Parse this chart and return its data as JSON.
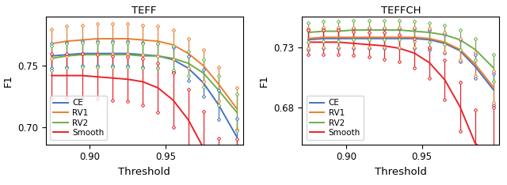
{
  "title_left": "TEFF",
  "title_right": "TEFFCH",
  "xlabel": "Threshold",
  "ylabel": "F1",
  "colors": {
    "CE": "#4472c4",
    "RV1": "#ed7d31",
    "RV2": "#70ad47",
    "Smooth": "#e8252a"
  },
  "thresholds": [
    0.875,
    0.885,
    0.895,
    0.905,
    0.915,
    0.925,
    0.935,
    0.945,
    0.955,
    0.965,
    0.975,
    0.985,
    0.997
  ],
  "teff": {
    "CE": [
      0.758,
      0.759,
      0.76,
      0.76,
      0.76,
      0.76,
      0.759,
      0.758,
      0.755,
      0.748,
      0.736,
      0.718,
      0.692
    ],
    "CE_err": [
      0.01,
      0.01,
      0.01,
      0.01,
      0.01,
      0.01,
      0.01,
      0.01,
      0.01,
      0.01,
      0.011,
      0.012,
      0.015
    ],
    "RV1": [
      0.768,
      0.77,
      0.771,
      0.772,
      0.772,
      0.772,
      0.771,
      0.77,
      0.767,
      0.76,
      0.75,
      0.735,
      0.715
    ],
    "RV1_err": [
      0.012,
      0.012,
      0.012,
      0.012,
      0.012,
      0.012,
      0.012,
      0.012,
      0.012,
      0.012,
      0.013,
      0.014,
      0.017
    ],
    "RV2": [
      0.756,
      0.758,
      0.759,
      0.759,
      0.759,
      0.759,
      0.758,
      0.758,
      0.756,
      0.752,
      0.744,
      0.73,
      0.712
    ],
    "RV2_err": [
      0.01,
      0.01,
      0.01,
      0.01,
      0.01,
      0.01,
      0.01,
      0.01,
      0.01,
      0.01,
      0.011,
      0.012,
      0.015
    ],
    "Smooth": [
      0.742,
      0.742,
      0.742,
      0.741,
      0.74,
      0.739,
      0.737,
      0.732,
      0.722,
      0.706,
      0.683,
      0.653,
      0.638
    ],
    "Smooth_err": [
      0.018,
      0.018,
      0.018,
      0.018,
      0.018,
      0.018,
      0.019,
      0.02,
      0.022,
      0.025,
      0.03,
      0.038,
      0.052
    ]
  },
  "teffch": {
    "CE": [
      0.736,
      0.737,
      0.737,
      0.737,
      0.737,
      0.737,
      0.737,
      0.737,
      0.736,
      0.733,
      0.727,
      0.714,
      0.695
    ],
    "CE_err": [
      0.008,
      0.008,
      0.008,
      0.008,
      0.008,
      0.008,
      0.008,
      0.008,
      0.008,
      0.008,
      0.009,
      0.01,
      0.013
    ],
    "RV1": [
      0.737,
      0.738,
      0.738,
      0.738,
      0.738,
      0.738,
      0.738,
      0.738,
      0.737,
      0.734,
      0.728,
      0.716,
      0.697
    ],
    "RV1_err": [
      0.008,
      0.008,
      0.008,
      0.008,
      0.008,
      0.008,
      0.008,
      0.008,
      0.008,
      0.008,
      0.009,
      0.01,
      0.013
    ],
    "RV2": [
      0.742,
      0.743,
      0.743,
      0.744,
      0.744,
      0.744,
      0.744,
      0.743,
      0.742,
      0.74,
      0.736,
      0.728,
      0.713
    ],
    "RV2_err": [
      0.008,
      0.008,
      0.008,
      0.008,
      0.008,
      0.008,
      0.008,
      0.008,
      0.008,
      0.008,
      0.008,
      0.009,
      0.011
    ],
    "Smooth": [
      0.734,
      0.734,
      0.734,
      0.733,
      0.732,
      0.731,
      0.729,
      0.725,
      0.717,
      0.703,
      0.681,
      0.651,
      0.638
    ],
    "Smooth_err": [
      0.01,
      0.01,
      0.01,
      0.01,
      0.01,
      0.011,
      0.011,
      0.012,
      0.013,
      0.016,
      0.02,
      0.027,
      0.042
    ]
  },
  "teff_ylim": [
    0.686,
    0.79
  ],
  "teffch_ylim": [
    0.65,
    0.755
  ],
  "teff_yticks": [
    0.7,
    0.75
  ],
  "teffch_yticks": [
    0.68,
    0.73
  ],
  "xticks": [
    0.9,
    0.95
  ],
  "legend_labels": [
    "CE",
    "RV1",
    "RV2",
    "Smooth"
  ]
}
